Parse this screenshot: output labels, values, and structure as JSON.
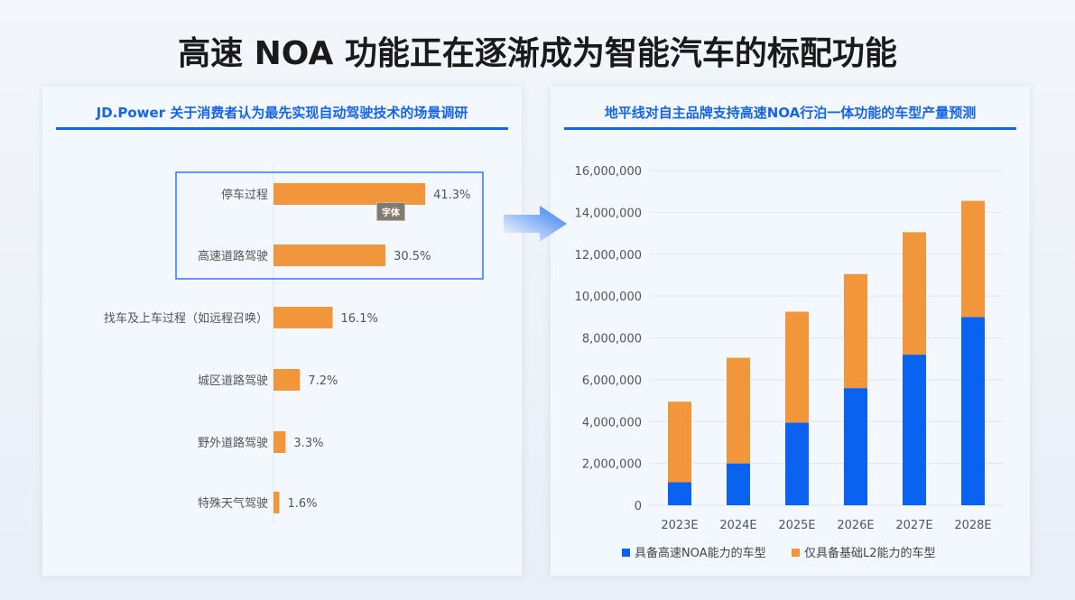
{
  "title": "高速 NOA 功能正在逐渐成为智能汽车的标配功能",
  "tooltip": "字体",
  "colors": {
    "orange": "#f2963c",
    "blue": "#0a62f0",
    "accent": "#1565e8"
  },
  "chart_data": [
    {
      "type": "bar",
      "orientation": "horizontal",
      "title": "JD.Power 关于消费者认为最先实现自动驾驶技术的场景调研",
      "categories": [
        "停车过程",
        "高速道路驾驶",
        "找车及上车过程（如远程召唤）",
        "城区道路驾驶",
        "野外道路驾驶",
        "特殊天气驾驶"
      ],
      "values": [
        41.3,
        30.5,
        16.1,
        7.2,
        3.3,
        1.6
      ],
      "labels": [
        "41.3%",
        "30.5%",
        "16.1%",
        "7.2%",
        "3.3%",
        "1.6%"
      ],
      "highlighted": [
        "停车过程",
        "高速道路驾驶"
      ]
    },
    {
      "type": "bar",
      "stacked": true,
      "title": "地平线对自主品牌支持高速NOA行泊一体功能的车型产量预测",
      "categories": [
        "2023E",
        "2024E",
        "2025E",
        "2026E",
        "2027E",
        "2028E"
      ],
      "series": [
        {
          "name": "具备高速NOA能力的车型",
          "values": [
            1100000,
            2000000,
            3950000,
            5600000,
            7200000,
            9000000
          ]
        },
        {
          "name": "仅具备基础L2能力的车型",
          "values": [
            3850000,
            5050000,
            5300000,
            5450000,
            5850000,
            5550000
          ]
        }
      ],
      "yticks": [
        "0",
        "2,000,000",
        "4,000,000",
        "6,000,000",
        "8,000,000",
        "10,000,000",
        "12,000,000",
        "14,000,000",
        "16,000,000"
      ],
      "ylim": [
        0,
        16000000
      ],
      "grid": true,
      "legend": "bottom"
    }
  ]
}
